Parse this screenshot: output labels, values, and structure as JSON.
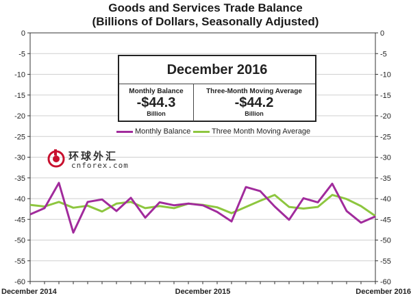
{
  "chart_data": {
    "type": "line",
    "title": "Goods and Services Trade Balance",
    "subtitle": "(Billions of Dollars, Seasonally Adjusted)",
    "ylim": [
      -60,
      0
    ],
    "yticks": [
      0,
      -5,
      -10,
      -15,
      -20,
      -25,
      -30,
      -35,
      -40,
      -45,
      -50,
      -55,
      -60
    ],
    "xtick_labels": [
      "December 2014",
      "December 2015",
      "December 2016"
    ],
    "grid": true,
    "legend_position": "top-center",
    "series": [
      {
        "name": "Monthly Balance",
        "color": "#a12b9c",
        "values": [
          -43.8,
          -42.3,
          -36.2,
          -48.2,
          -40.8,
          -40.2,
          -43.0,
          -39.8,
          -44.6,
          -40.9,
          -41.6,
          -41.2,
          -41.6,
          -43.2,
          -45.5,
          -37.2,
          -38.2,
          -41.9,
          -45.1,
          -39.9,
          -40.9,
          -36.4,
          -43.0,
          -45.8,
          -44.3
        ]
      },
      {
        "name": "Three Month Moving Average",
        "color": "#8dc63f",
        "values": [
          -41.5,
          -41.9,
          -40.8,
          -42.2,
          -41.7,
          -43.1,
          -41.2,
          -40.8,
          -42.3,
          -41.8,
          -42.3,
          -41.2,
          -41.5,
          -42.1,
          -43.5,
          -42.0,
          -40.5,
          -39.1,
          -42.0,
          -42.4,
          -42.0,
          -39.1,
          -40.1,
          -41.8,
          -44.2
        ]
      }
    ],
    "annotation": {
      "header": "December 2016",
      "left_label": "Monthly Balance",
      "left_value": "-$44.3",
      "left_unit": "Billion",
      "right_label": "Three-Month Moving Average",
      "right_value": "-$44.2",
      "right_unit": "Billion"
    }
  },
  "watermark": {
    "cn_text": "环球外汇",
    "url": "cnforex.com"
  }
}
